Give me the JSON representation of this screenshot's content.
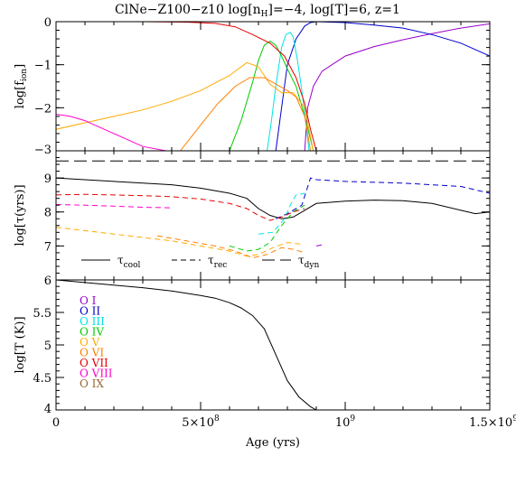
{
  "figure": {
    "title": "ClNe−Z100−z10 log[n",
    "title_sub": "H",
    "title_rest": "]=−4, log[T]=6, z=1",
    "xlabel": "Age (yrs)",
    "xticks": [
      "0",
      "5×10",
      "10",
      "1.5×10"
    ],
    "xtick_exp": [
      "",
      "8",
      "9",
      "9"
    ]
  },
  "chart_data": [
    {
      "type": "line",
      "panel": "ionization fractions",
      "ylabel": "log[f",
      "ylabel_sub": "ion",
      "ylabel_end": "]",
      "xlim": [
        0,
        1500000000.0
      ],
      "ylim": [
        -3,
        0
      ],
      "yticks": [
        "0",
        "−1",
        "−2",
        "−3"
      ],
      "yvals": [
        0,
        -1,
        -2,
        -3
      ],
      "series": [
        {
          "key": "I",
          "color": "#9900cc",
          "x": [
            860000000.0,
            870000000.0,
            890000000.0,
            920000000.0,
            1000000000.0,
            1100000000.0,
            1200000000.0,
            1300000000.0,
            1400000000.0,
            1500000000.0
          ],
          "y": [
            -3.0,
            -2.0,
            -1.5,
            -1.15,
            -0.8,
            -0.58,
            -0.42,
            -0.28,
            -0.15,
            -0.05
          ]
        },
        {
          "key": "II",
          "color": "#0000cc",
          "x": [
            760000000.0,
            780000000.0,
            800000000.0,
            830000000.0,
            860000000.0,
            880000000.0,
            900000000.0,
            1000000000.0,
            1100000000.0,
            1200000000.0,
            1300000000.0,
            1400000000.0,
            1500000000.0
          ],
          "y": [
            -3.0,
            -2.0,
            -1.0,
            -0.4,
            -0.1,
            -0.02,
            -0.0,
            -0.02,
            -0.08,
            -0.15,
            -0.3,
            -0.5,
            -0.8
          ]
        },
        {
          "key": "III",
          "color": "#00e5e5",
          "x": [
            730000000.0,
            745000000.0,
            760000000.0,
            780000000.0,
            795000000.0,
            810000000.0,
            820000000.0,
            835000000.0,
            850000000.0,
            865000000.0,
            875000000.0
          ],
          "y": [
            -3.0,
            -2.3,
            -1.5,
            -0.6,
            -0.3,
            -0.25,
            -0.35,
            -0.9,
            -1.6,
            -2.4,
            -3.0
          ]
        },
        {
          "key": "IV",
          "color": "#00cc00",
          "x": [
            600000000.0,
            640000000.0,
            680000000.0,
            700000000.0,
            720000000.0,
            740000000.0,
            760000000.0,
            780000000.0,
            800000000.0,
            830000000.0,
            860000000.0,
            890000000.0
          ],
          "y": [
            -3.0,
            -2.3,
            -1.4,
            -0.9,
            -0.55,
            -0.45,
            -0.55,
            -0.8,
            -1.1,
            -1.5,
            -2.2,
            -3.0
          ]
        },
        {
          "key": "V",
          "color": "#ffaa00",
          "x": [
            0,
            100000000.0,
            200000000.0,
            300000000.0,
            400000000.0,
            500000000.0,
            600000000.0,
            660000000.0,
            700000000.0,
            740000000.0,
            780000000.0,
            820000000.0,
            860000000.0,
            890000000.0
          ],
          "y": [
            -2.5,
            -2.35,
            -2.2,
            -2.05,
            -1.85,
            -1.6,
            -1.25,
            -0.95,
            -1.05,
            -1.45,
            -1.65,
            -1.65,
            -2.0,
            -3.0
          ]
        },
        {
          "key": "VI",
          "color": "#ff8000",
          "x": [
            430000000.0,
            500000000.0,
            560000000.0,
            620000000.0,
            670000000.0,
            720000000.0,
            760000000.0,
            800000000.0,
            830000000.0,
            860000000.0,
            880000000.0
          ],
          "y": [
            -3.0,
            -2.4,
            -1.9,
            -1.5,
            -1.3,
            -1.3,
            -1.45,
            -1.6,
            -1.75,
            -2.2,
            -3.0
          ]
        },
        {
          "key": "VII",
          "color": "#e60000",
          "x": [
            0,
            300000000.0,
            450000000.0,
            550000000.0,
            620000000.0,
            680000000.0,
            740000000.0,
            790000000.0,
            830000000.0,
            860000000.0,
            880000000.0,
            900000000.0
          ],
          "y": [
            0.0,
            -0.0,
            -0.01,
            -0.04,
            -0.12,
            -0.3,
            -0.5,
            -0.8,
            -1.3,
            -1.9,
            -2.5,
            -3.0
          ]
        },
        {
          "key": "VIII",
          "color": "#ff00cc",
          "x": [
            0,
            50000000.0,
            100000000.0,
            150000000.0,
            200000000.0,
            250000000.0,
            300000000.0,
            380000000.0
          ],
          "y": [
            -2.15,
            -2.2,
            -2.3,
            -2.45,
            -2.6,
            -2.75,
            -2.9,
            -3.0
          ]
        }
      ]
    },
    {
      "type": "line",
      "panel": "timescales",
      "ylabel": "log[τ(yrs)]",
      "xlim": [
        0,
        1500000000.0
      ],
      "ylim": [
        6,
        9.8
      ],
      "yticks": [
        "7",
        "8",
        "9"
      ],
      "yvals": [
        7,
        8,
        9
      ],
      "legend": [
        "τ",
        "τ",
        "τ"
      ],
      "legend_sub": [
        "cool",
        "rec",
        "dyn"
      ],
      "series": [
        {
          "key": "cool",
          "style": "solid",
          "color": "#000000",
          "x": [
            0,
            100000000.0,
            200000000.0,
            300000000.0,
            400000000.0,
            500000000.0,
            600000000.0,
            660000000.0,
            700000000.0,
            740000000.0,
            780000000.0,
            820000000.0,
            860000000.0,
            900000000.0,
            1000000000.0,
            1100000000.0,
            1200000000.0,
            1300000000.0,
            1400000000.0,
            1450000000.0,
            1500000000.0
          ],
          "y": [
            9.0,
            8.95,
            8.9,
            8.85,
            8.8,
            8.7,
            8.55,
            8.4,
            8.1,
            7.9,
            7.8,
            7.85,
            8.05,
            8.25,
            8.32,
            8.35,
            8.33,
            8.25,
            8.05,
            7.95,
            8.0
          ]
        },
        {
          "key": "dyn",
          "style": "longdash",
          "color": "#000000",
          "x": [
            0,
            1500000000.0
          ],
          "y": [
            9.5,
            9.5
          ]
        },
        {
          "key": "I",
          "style": "dash",
          "color": "#9900cc",
          "x": [
            900000000.0,
            930000000.0
          ],
          "y": [
            7.0,
            7.05
          ]
        },
        {
          "key": "II",
          "style": "dash",
          "color": "#0000cc",
          "x": [
            760000000.0,
            800000000.0,
            850000000.0,
            880000000.0,
            900000000.0,
            1000000000.0,
            1200000000.0,
            1400000000.0,
            1500000000.0
          ],
          "y": [
            7.8,
            7.95,
            8.2,
            9.0,
            8.95,
            8.9,
            8.85,
            8.75,
            8.55
          ]
        },
        {
          "key": "III",
          "style": "dash",
          "color": "#00e5e5",
          "x": [
            700000000.0,
            750000000.0,
            790000000.0,
            810000000.0,
            830000000.0,
            860000000.0
          ],
          "y": [
            7.35,
            7.4,
            7.8,
            8.2,
            8.5,
            8.55
          ]
        },
        {
          "key": "IV",
          "style": "dash",
          "color": "#00cc00",
          "x": [
            600000000.0,
            660000000.0,
            700000000.0,
            740000000.0,
            780000000.0,
            820000000.0,
            860000000.0
          ],
          "y": [
            7.0,
            6.85,
            6.9,
            7.1,
            7.6,
            8.0,
            8.2
          ]
        },
        {
          "key": "V",
          "style": "dash",
          "color": "#ffaa00",
          "x": [
            0,
            100000000.0,
            200000000.0,
            300000000.0,
            400000000.0,
            500000000.0,
            600000000.0,
            660000000.0,
            700000000.0,
            750000000.0,
            800000000.0,
            850000000.0
          ],
          "y": [
            7.55,
            7.45,
            7.35,
            7.25,
            7.15,
            7.0,
            6.85,
            6.7,
            6.75,
            6.95,
            7.1,
            7.05
          ]
        },
        {
          "key": "VI",
          "style": "dash",
          "color": "#ff8000",
          "x": [
            350000000.0,
            450000000.0,
            550000000.0,
            620000000.0,
            680000000.0,
            730000000.0,
            780000000.0,
            820000000.0,
            860000000.0
          ],
          "y": [
            7.3,
            7.15,
            7.0,
            6.85,
            6.65,
            6.75,
            6.95,
            6.9,
            6.8
          ]
        },
        {
          "key": "VII",
          "style": "dash",
          "color": "#e60000",
          "x": [
            0,
            100000000.0,
            200000000.0,
            300000000.0,
            400000000.0,
            500000000.0,
            600000000.0,
            660000000.0,
            700000000.0,
            740000000.0,
            780000000.0,
            820000000.0,
            860000000.0
          ],
          "y": [
            8.5,
            8.52,
            8.5,
            8.48,
            8.45,
            8.38,
            8.25,
            8.1,
            7.9,
            7.75,
            7.85,
            8.0,
            8.1
          ]
        },
        {
          "key": "VIII",
          "style": "dash",
          "color": "#ff00cc",
          "x": [
            0,
            100000000.0,
            200000000.0,
            300000000.0,
            400000000.0
          ],
          "y": [
            8.22,
            8.2,
            8.17,
            8.14,
            8.12
          ]
        }
      ]
    },
    {
      "type": "line",
      "panel": "temperature",
      "ylabel": "log[T (K)]",
      "xlim": [
        0,
        1500000000.0
      ],
      "ylim": [
        4,
        6
      ],
      "yticks": [
        "6",
        "5.5",
        "5",
        "4.5",
        "4"
      ],
      "yvals": [
        6,
        5.5,
        5,
        4.5,
        4
      ],
      "ion_labels": [
        {
          "key": "I",
          "text": "O I",
          "color": "#9900cc"
        },
        {
          "key": "II",
          "text": "O II",
          "color": "#0000cc"
        },
        {
          "key": "III",
          "text": "O III",
          "color": "#00e5e5"
        },
        {
          "key": "IV",
          "text": "O IV",
          "color": "#00cc00"
        },
        {
          "key": "V",
          "text": "O V",
          "color": "#ffaa00"
        },
        {
          "key": "VI",
          "text": "O VI",
          "color": "#ff8000"
        },
        {
          "key": "VII",
          "text": "O VII",
          "color": "#e60000"
        },
        {
          "key": "VIII",
          "text": "O VIII",
          "color": "#ff00cc"
        },
        {
          "key": "IX",
          "text": "O IX",
          "color": "#996633"
        }
      ],
      "series": [
        {
          "key": "T",
          "style": "solid",
          "color": "#000000",
          "x": [
            0,
            100000000.0,
            200000000.0,
            300000000.0,
            400000000.0,
            500000000.0,
            550000000.0,
            600000000.0,
            640000000.0,
            680000000.0,
            720000000.0,
            760000000.0,
            800000000.0,
            840000000.0,
            880000000.0,
            900000000.0
          ],
          "y": [
            6.0,
            5.96,
            5.92,
            5.88,
            5.83,
            5.76,
            5.72,
            5.65,
            5.57,
            5.45,
            5.25,
            4.85,
            4.45,
            4.2,
            4.05,
            4.0
          ]
        }
      ]
    }
  ]
}
